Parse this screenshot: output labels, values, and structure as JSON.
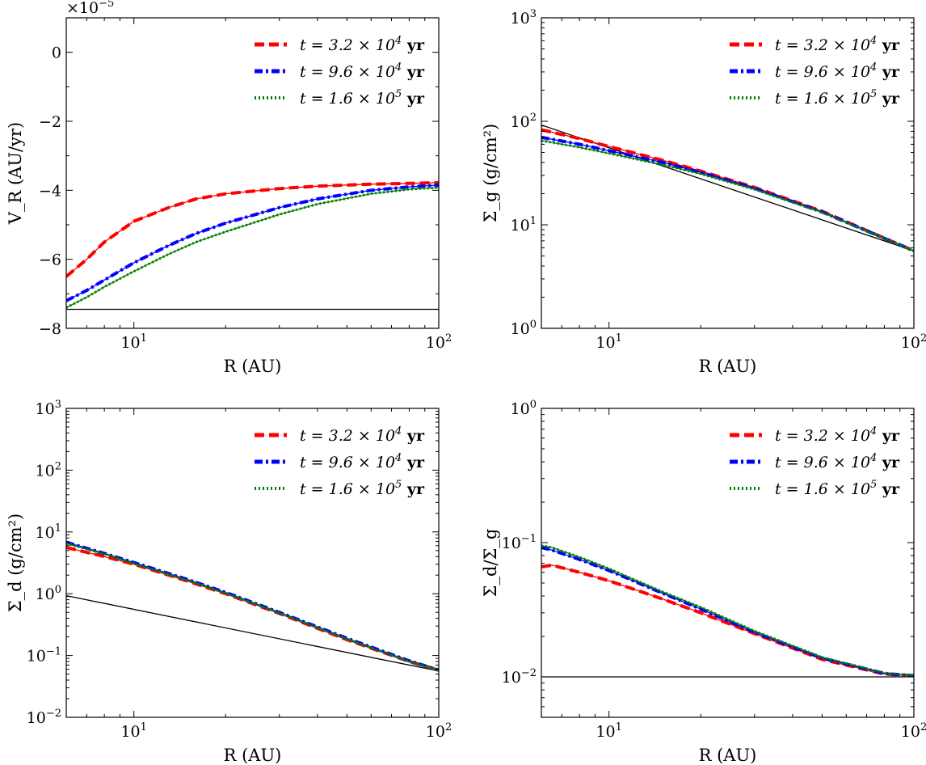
{
  "chart_data": [
    {
      "type": "line",
      "id": "vr",
      "xlabel": "R (AU)",
      "ylabel": "V_R (AU/yr)",
      "yscale": "linear",
      "xscale": "log",
      "ylim": [
        -8,
        1
      ],
      "xlim": [
        6,
        100
      ],
      "offset_label": "×10⁻⁵",
      "yticks": [
        0,
        -2,
        -4,
        -6,
        -8
      ],
      "ytick_labels": [
        "0",
        "−2",
        "−4",
        "−6",
        "−8"
      ],
      "xticks": [
        10,
        100
      ],
      "xtick_labels": [
        "10¹",
        "10²"
      ],
      "legend_position": "top-right",
      "series": [
        {
          "name": "t = 3.2 × 10⁴ yr",
          "color": "#ff0000",
          "style": "dashed",
          "x": [
            6,
            7,
            8,
            10,
            13,
            16,
            20,
            30,
            40,
            60,
            80,
            100
          ],
          "y": [
            -6.5,
            -6.0,
            -5.5,
            -4.9,
            -4.5,
            -4.25,
            -4.1,
            -3.95,
            -3.88,
            -3.82,
            -3.8,
            -3.78
          ]
        },
        {
          "name": "t = 9.6 × 10⁴ yr",
          "color": "#0000ff",
          "style": "dashdot",
          "x": [
            6,
            7,
            8,
            10,
            13,
            16,
            20,
            30,
            40,
            60,
            80,
            100
          ],
          "y": [
            -7.2,
            -6.9,
            -6.6,
            -6.1,
            -5.6,
            -5.25,
            -4.95,
            -4.5,
            -4.25,
            -4.0,
            -3.9,
            -3.85
          ]
        },
        {
          "name": "t = 1.6 × 10⁵ yr",
          "color": "#008000",
          "style": "dotted",
          "x": [
            6,
            7,
            8,
            10,
            13,
            16,
            20,
            30,
            40,
            60,
            80,
            100
          ],
          "y": [
            -7.4,
            -7.1,
            -6.8,
            -6.35,
            -5.85,
            -5.5,
            -5.2,
            -4.7,
            -4.4,
            -4.1,
            -3.97,
            -3.92
          ]
        },
        {
          "name": "",
          "color": "#000000",
          "style": "solid",
          "x": [
            6,
            100
          ],
          "y": [
            -7.45,
            -7.45
          ]
        }
      ]
    },
    {
      "type": "line",
      "id": "sigma_g",
      "xlabel": "R (AU)",
      "ylabel": "Σ_g (g/cm²)",
      "yscale": "log",
      "xscale": "log",
      "ylim": [
        1,
        1000
      ],
      "xlim": [
        6,
        100
      ],
      "yticks": [
        1,
        10,
        100,
        1000
      ],
      "ytick_labels": [
        "10⁰",
        "10¹",
        "10²",
        "10³"
      ],
      "xticks": [
        10,
        100
      ],
      "xtick_labels": [
        "10¹",
        "10²"
      ],
      "legend_position": "top-right",
      "series": [
        {
          "name": "t = 3.2 × 10⁴ yr",
          "color": "#ff0000",
          "style": "dashed",
          "x": [
            6,
            8,
            10,
            15,
            20,
            30,
            50,
            100
          ],
          "y": [
            83,
            68,
            57,
            42,
            33,
            23,
            13.5,
            5.6
          ]
        },
        {
          "name": "t = 9.6 × 10⁴ yr",
          "color": "#0000ff",
          "style": "dashdot",
          "x": [
            6,
            8,
            10,
            15,
            20,
            30,
            50,
            100
          ],
          "y": [
            70,
            60,
            52,
            40,
            32,
            22.5,
            13.3,
            5.6
          ]
        },
        {
          "name": "t = 1.6 × 10⁵ yr",
          "color": "#008000",
          "style": "dotted",
          "x": [
            6,
            8,
            10,
            15,
            20,
            30,
            50,
            100
          ],
          "y": [
            65,
            56,
            49,
            38,
            31,
            22,
            13.2,
            5.6
          ]
        },
        {
          "name": "",
          "color": "#000000",
          "style": "solid",
          "x": [
            6,
            100
          ],
          "y": [
            92,
            5.6
          ]
        }
      ]
    },
    {
      "type": "line",
      "id": "sigma_d",
      "xlabel": "R (AU)",
      "ylabel": "Σ_d (g/cm²)",
      "yscale": "log",
      "xscale": "log",
      "ylim": [
        0.01,
        1000
      ],
      "xlim": [
        6,
        100
      ],
      "yticks": [
        0.01,
        0.1,
        1,
        10,
        100,
        1000
      ],
      "ytick_labels": [
        "10⁻²",
        "10⁻¹",
        "10⁰",
        "10¹",
        "10²",
        "10³"
      ],
      "xticks": [
        10,
        100
      ],
      "xtick_labels": [
        "10¹",
        "10²"
      ],
      "legend_position": "top-right",
      "series": [
        {
          "name": "t = 3.2 × 10⁴ yr",
          "color": "#ff0000",
          "style": "dashed",
          "x": [
            6,
            8,
            10,
            15,
            20,
            30,
            50,
            80,
            100
          ],
          "y": [
            5.6,
            4.0,
            3.0,
            1.6,
            1.0,
            0.48,
            0.18,
            0.08,
            0.058
          ]
        },
        {
          "name": "t = 9.6 × 10⁴ yr",
          "color": "#0000ff",
          "style": "dashdot",
          "x": [
            6,
            8,
            10,
            15,
            20,
            30,
            50,
            80,
            100
          ],
          "y": [
            6.8,
            4.5,
            3.2,
            1.7,
            1.05,
            0.5,
            0.19,
            0.082,
            0.058
          ]
        },
        {
          "name": "t = 1.6 × 10⁵ yr",
          "color": "#008000",
          "style": "dotted",
          "x": [
            6,
            8,
            10,
            15,
            20,
            30,
            50,
            80,
            100
          ],
          "y": [
            6.5,
            4.4,
            3.1,
            1.65,
            1.02,
            0.49,
            0.185,
            0.08,
            0.058
          ]
        },
        {
          "name": "",
          "color": "#000000",
          "style": "solid",
          "x": [
            6,
            100
          ],
          "y": [
            0.93,
            0.056
          ]
        }
      ]
    },
    {
      "type": "line",
      "id": "ratio",
      "xlabel": "R (AU)",
      "ylabel": "Σ_d/Σ_g",
      "yscale": "log",
      "xscale": "log",
      "ylim": [
        0.005,
        1
      ],
      "xlim": [
        6,
        100
      ],
      "yticks": [
        0.01,
        0.1,
        1
      ],
      "ytick_labels": [
        "10⁻²",
        "10⁻¹",
        "10⁰"
      ],
      "xticks": [
        10,
        100
      ],
      "xtick_labels": [
        "10¹",
        "10²"
      ],
      "legend_position": "top-right",
      "series": [
        {
          "name": "t = 3.2 × 10⁴ yr",
          "color": "#ff0000",
          "style": "dashed",
          "x": [
            6,
            6.5,
            8,
            10,
            15,
            20,
            30,
            50,
            80,
            100
          ],
          "y": [
            0.066,
            0.068,
            0.06,
            0.052,
            0.038,
            0.03,
            0.021,
            0.0135,
            0.0105,
            0.0102
          ]
        },
        {
          "name": "t = 9.6 × 10⁴ yr",
          "color": "#0000ff",
          "style": "dashdot",
          "x": [
            6,
            6.5,
            8,
            10,
            15,
            20,
            30,
            50,
            80,
            100
          ],
          "y": [
            0.092,
            0.088,
            0.075,
            0.062,
            0.042,
            0.032,
            0.0215,
            0.0138,
            0.0106,
            0.0102
          ]
        },
        {
          "name": "t = 1.6 × 10⁵ yr",
          "color": "#008000",
          "style": "dotted",
          "x": [
            6,
            6.5,
            8,
            10,
            15,
            20,
            30,
            50,
            80,
            100
          ],
          "y": [
            0.095,
            0.092,
            0.078,
            0.064,
            0.043,
            0.033,
            0.022,
            0.014,
            0.0107,
            0.0102
          ]
        },
        {
          "name": "",
          "color": "#000000",
          "style": "solid",
          "x": [
            6,
            100
          ],
          "y": [
            0.01,
            0.01
          ]
        }
      ]
    }
  ]
}
